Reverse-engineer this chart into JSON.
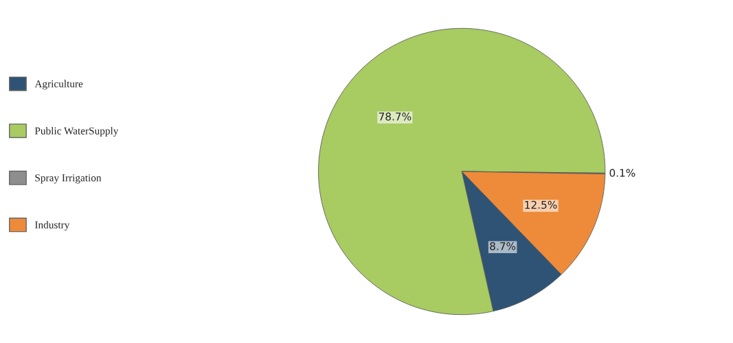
{
  "chart_data": {
    "type": "pie",
    "categories": [
      "Agriculture",
      "Public WaterSupply",
      "Spray Irrigation",
      "Industry"
    ],
    "values": [
      8.7,
      78.7,
      0.1,
      12.5
    ],
    "colors": [
      "#2f5374",
      "#a8cb62",
      "#8e8e8e",
      "#ee8b3a"
    ],
    "value_labels": [
      "8.7%",
      "78.7%",
      "0.1%",
      "12.5%"
    ],
    "legend": "left"
  }
}
